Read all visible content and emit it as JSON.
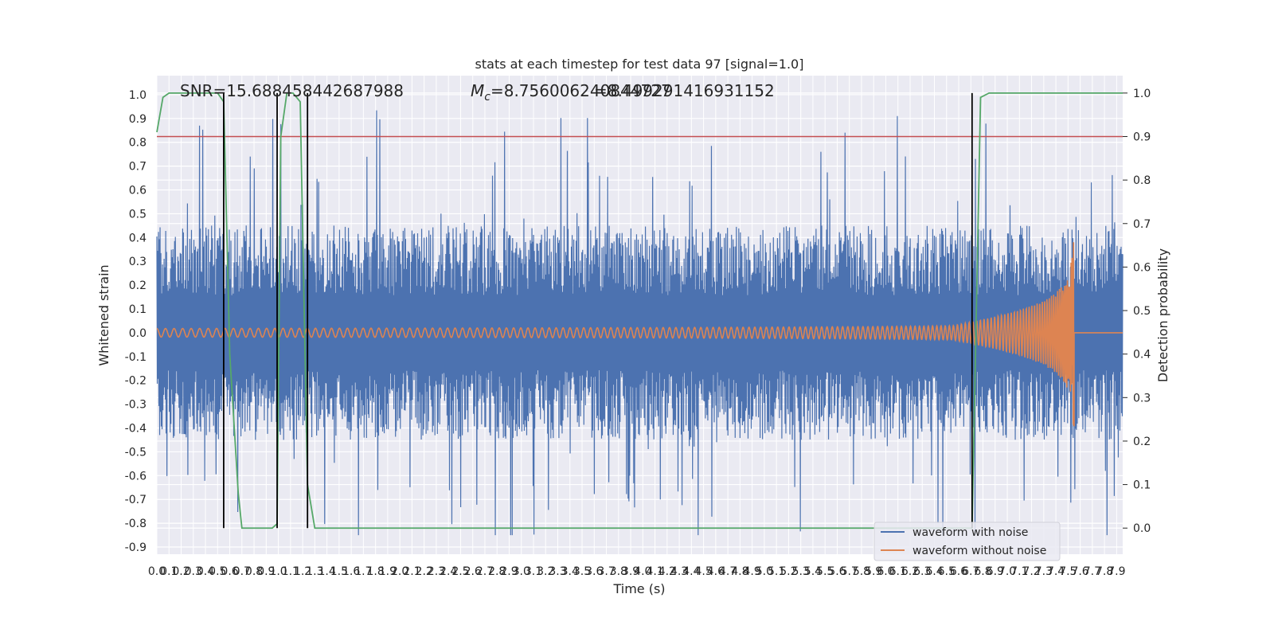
{
  "chart_data": {
    "type": "line",
    "title": "stats at each timestep for test data 97 [signal=1.0]",
    "xlabel": "Time (s)",
    "ylabel": "Whitened strain",
    "y2label": "Detection probability",
    "xlim": [
      0.0,
      7.95
    ],
    "ylim": [
      -0.93,
      1.08
    ],
    "y2lim": [
      -0.06,
      1.04
    ],
    "x_ticks": [
      0.0,
      0.1,
      0.2,
      0.3,
      0.4,
      0.5,
      0.6,
      0.7,
      0.8,
      0.9,
      1.0,
      1.1,
      1.2,
      1.3,
      1.4,
      1.5,
      1.6,
      1.7,
      1.8,
      1.9,
      2.0,
      2.1,
      2.2,
      2.3,
      2.4,
      2.5,
      2.6,
      2.7,
      2.8,
      2.9,
      3.0,
      3.1,
      3.2,
      3.3,
      3.4,
      3.5,
      3.6,
      3.7,
      3.8,
      3.9,
      4.0,
      4.1,
      4.2,
      4.3,
      4.4,
      4.5,
      4.6,
      4.7,
      4.8,
      4.9,
      5.0,
      5.1,
      5.2,
      5.3,
      5.4,
      5.5,
      5.6,
      5.7,
      5.8,
      5.9,
      6.0,
      6.1,
      6.2,
      6.3,
      6.4,
      6.5,
      6.6,
      6.7,
      6.8,
      6.9,
      7.0,
      7.1,
      7.2,
      7.3,
      7.4,
      7.5,
      7.6,
      7.7,
      7.8,
      7.9
    ],
    "y_ticks": [
      1.0,
      0.9,
      0.8,
      0.7,
      0.6,
      0.5,
      0.4,
      0.3,
      0.2,
      0.1,
      0.0,
      -0.1,
      -0.2,
      -0.3,
      -0.4,
      -0.5,
      -0.6,
      -0.7,
      -0.8,
      -0.9
    ],
    "y2_ticks": [
      1.0,
      0.9,
      0.8,
      0.7,
      0.6,
      0.5,
      0.4,
      0.3,
      0.2,
      0.1,
      0.0
    ],
    "grid": true,
    "annotations": {
      "snr": "SNR=15.688458442687988",
      "mc_prefix": "M",
      "mc_sub": "c",
      "mc_value": "=8.756006240844727",
      "mc_overlap": "=8.499291416931152"
    },
    "threshold": {
      "y2": 0.9,
      "color": "#c44e52"
    },
    "vertical_lines": [
      0.55,
      0.99,
      1.24,
      6.71
    ],
    "series": [
      {
        "name": "waveform with noise",
        "color": "#4c72b0",
        "kind": "noisy_strain",
        "noise_band": [
          -0.45,
          0.45
        ],
        "spike_extent": [
          -0.85,
          1.0
        ]
      },
      {
        "name": "waveform without noise",
        "color": "#dd8452",
        "kind": "chirp",
        "merger_time": 7.55,
        "peak_amplitude": 0.4
      },
      {
        "name": "detection probability",
        "color": "#55a868",
        "axis": "y2",
        "x": [
          0.0,
          0.05,
          0.1,
          0.5,
          0.55,
          0.6,
          0.67,
          0.7,
          0.75,
          0.85,
          0.95,
          0.99,
          1.02,
          1.07,
          1.12,
          1.18,
          1.24,
          1.3,
          1.36,
          6.65,
          6.71,
          6.78,
          6.85,
          7.95
        ],
        "y": [
          0.91,
          0.99,
          1.0,
          1.0,
          0.98,
          0.4,
          0.08,
          0.0,
          0.0,
          0.0,
          0.0,
          0.01,
          0.9,
          1.0,
          1.0,
          0.98,
          0.1,
          0.0,
          0.0,
          0.0,
          0.0,
          0.99,
          1.0,
          1.0
        ]
      }
    ],
    "legend": {
      "placement": "lower-right",
      "entries": [
        "waveform with noise",
        "waveform without noise"
      ]
    }
  }
}
